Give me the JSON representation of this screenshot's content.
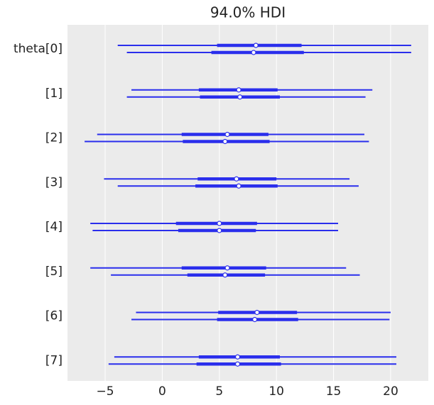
{
  "chart_data": {
    "type": "forest",
    "title": "94.0% HDI",
    "color": "#2a2eec",
    "grid": true,
    "xlim": [
      -8.3,
      23.3
    ],
    "xticks": [
      {
        "value": -5,
        "label": "−5"
      },
      0,
      5,
      10,
      15,
      20
    ],
    "rows": [
      {
        "label": "theta[0]",
        "chains": [
          {
            "hdi": [
              -3.9,
              21.8
            ],
            "iqr": [
              4.8,
              12.2
            ],
            "median": 8.2
          },
          {
            "hdi": [
              -3.1,
              21.8
            ],
            "iqr": [
              4.3,
              12.4
            ],
            "median": 8.0
          }
        ]
      },
      {
        "label": "[1]",
        "chains": [
          {
            "hdi": [
              -2.7,
              18.4
            ],
            "iqr": [
              3.2,
              10.1
            ],
            "median": 6.7
          },
          {
            "hdi": [
              -3.1,
              17.8
            ],
            "iqr": [
              3.3,
              10.3
            ],
            "median": 6.8
          }
        ]
      },
      {
        "label": "[2]",
        "chains": [
          {
            "hdi": [
              -5.7,
              17.7
            ],
            "iqr": [
              1.7,
              9.3
            ],
            "median": 5.7
          },
          {
            "hdi": [
              -6.8,
              18.1
            ],
            "iqr": [
              1.8,
              9.4
            ],
            "median": 5.5
          }
        ]
      },
      {
        "label": "[3]",
        "chains": [
          {
            "hdi": [
              -5.1,
              16.4
            ],
            "iqr": [
              3.1,
              10.0
            ],
            "median": 6.5
          },
          {
            "hdi": [
              -3.9,
              17.2
            ],
            "iqr": [
              2.9,
              10.1
            ],
            "median": 6.7
          }
        ]
      },
      {
        "label": "[4]",
        "chains": [
          {
            "hdi": [
              -6.3,
              15.4
            ],
            "iqr": [
              1.2,
              8.3
            ],
            "median": 5.0
          },
          {
            "hdi": [
              -6.1,
              15.4
            ],
            "iqr": [
              1.4,
              8.2
            ],
            "median": 5.0
          }
        ]
      },
      {
        "label": "[5]",
        "chains": [
          {
            "hdi": [
              -6.3,
              16.1
            ],
            "iqr": [
              1.7,
              9.1
            ],
            "median": 5.7
          },
          {
            "hdi": [
              -4.5,
              17.3
            ],
            "iqr": [
              2.2,
              9.0
            ],
            "median": 5.5
          }
        ]
      },
      {
        "label": "[6]",
        "chains": [
          {
            "hdi": [
              -2.3,
              20.0
            ],
            "iqr": [
              4.9,
              11.8
            ],
            "median": 8.3
          },
          {
            "hdi": [
              -2.7,
              19.9
            ],
            "iqr": [
              4.8,
              11.9
            ],
            "median": 8.1
          }
        ]
      },
      {
        "label": "[7]",
        "chains": [
          {
            "hdi": [
              -4.2,
              20.5
            ],
            "iqr": [
              3.2,
              10.3
            ],
            "median": 6.6
          },
          {
            "hdi": [
              -4.7,
              20.5
            ],
            "iqr": [
              3.0,
              10.4
            ],
            "median": 6.6
          }
        ]
      }
    ]
  }
}
